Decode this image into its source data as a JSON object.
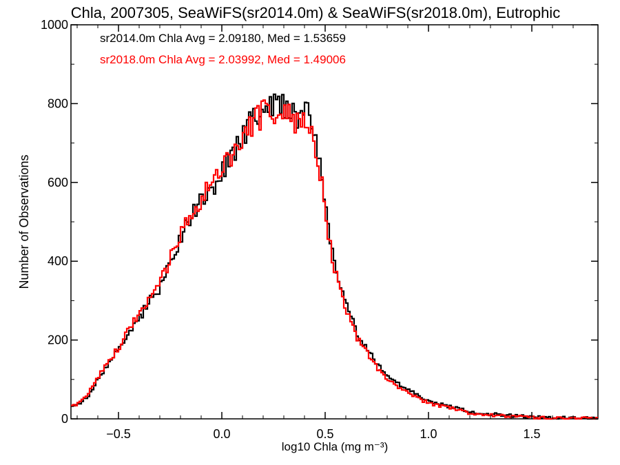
{
  "chart_data": {
    "type": "line",
    "title": "Chla, 2007305, SeaWiFS(sr2014.0m) & SeaWiFS(sr2018.0m), Eutrophic",
    "xlabel": "log10 Chla (mg m⁻³)",
    "ylabel": "Number of Observations",
    "xlim": [
      -0.73,
      1.82
    ],
    "ylim": [
      0,
      1000
    ],
    "xticks": [
      -0.5,
      0.0,
      0.5,
      1.0,
      1.5
    ],
    "xtick_labels": [
      "−0.5",
      "0.0",
      "0.5",
      "1.0",
      "1.5"
    ],
    "yticks": [
      0,
      200,
      400,
      600,
      800,
      1000
    ],
    "ytick_labels": [
      "0",
      "200",
      "400",
      "600",
      "800",
      "1000"
    ],
    "annotations": [
      {
        "text": "sr2014.0m Chla Avg = 2.09180, Med = 1.53659",
        "color": "#000000"
      },
      {
        "text": "sr2018.0m Chla Avg = 2.03992, Med = 1.49006",
        "color": "#ff0000"
      }
    ],
    "step_style": "histogram",
    "bin_width": 0.01,
    "series": [
      {
        "color": "#000000",
        "x": [
          -0.73,
          -0.7,
          -0.65,
          -0.6,
          -0.55,
          -0.5,
          -0.45,
          -0.4,
          -0.35,
          -0.3,
          -0.25,
          -0.2,
          -0.15,
          -0.1,
          -0.05,
          0.0,
          0.05,
          0.1,
          0.15,
          0.2,
          0.25,
          0.3,
          0.35,
          0.4,
          0.43,
          0.45,
          0.48,
          0.5,
          0.52,
          0.55,
          0.6,
          0.65,
          0.7,
          0.75,
          0.8,
          0.85,
          0.9,
          0.95,
          1.0,
          1.1,
          1.2,
          1.3,
          1.4,
          1.5,
          1.6,
          1.7,
          1.82
        ],
        "values": [
          30,
          35,
          55,
          100,
          140,
          175,
          220,
          255,
          300,
          330,
          390,
          460,
          510,
          550,
          580,
          620,
          670,
          720,
          760,
          790,
          800,
          790,
          770,
          775,
          760,
          700,
          640,
          560,
          470,
          390,
          300,
          220,
          180,
          140,
          110,
          90,
          75,
          60,
          45,
          32,
          18,
          12,
          8,
          5,
          3,
          2,
          1
        ]
      },
      {
        "color": "#ff0000",
        "x": [
          -0.73,
          -0.7,
          -0.65,
          -0.6,
          -0.55,
          -0.5,
          -0.45,
          -0.4,
          -0.35,
          -0.3,
          -0.25,
          -0.2,
          -0.15,
          -0.1,
          -0.05,
          0.0,
          0.05,
          0.1,
          0.15,
          0.2,
          0.25,
          0.3,
          0.35,
          0.4,
          0.43,
          0.45,
          0.48,
          0.5,
          0.52,
          0.55,
          0.6,
          0.65,
          0.7,
          0.75,
          0.8,
          0.85,
          0.9,
          0.95,
          1.0,
          1.1,
          1.2,
          1.3,
          1.4,
          1.5,
          1.6,
          1.7,
          1.82
        ],
        "values": [
          32,
          38,
          60,
          105,
          145,
          180,
          228,
          265,
          310,
          345,
          405,
          470,
          520,
          560,
          590,
          625,
          670,
          715,
          750,
          775,
          785,
          775,
          755,
          755,
          740,
          670,
          610,
          530,
          450,
          370,
          285,
          210,
          170,
          130,
          100,
          82,
          68,
          52,
          40,
          28,
          15,
          10,
          6,
          4,
          2,
          1,
          1
        ]
      }
    ]
  }
}
